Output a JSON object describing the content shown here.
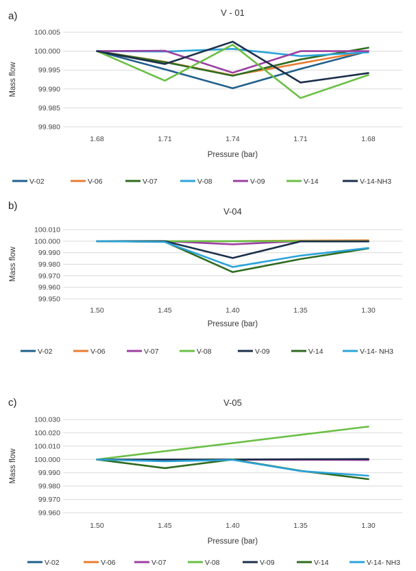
{
  "chart_data": [
    {
      "panel": "a)",
      "type": "line",
      "title": "V - 01",
      "xlabel": "Pressure (bar)",
      "ylabel": "Mass flow",
      "categories": [
        "1.68",
        "1.71",
        "1.74",
        "1.71",
        "1.68"
      ],
      "ylim": [
        99.98,
        100.005
      ],
      "yticks": [
        99.98,
        99.985,
        99.99,
        99.995,
        100.0,
        100.005
      ],
      "ytick_decimals": 3,
      "grid": true,
      "legend_position": "bottom",
      "series": [
        {
          "name": "V-02",
          "color": "#1f5f8b",
          "values": [
            100.0,
            99.9952,
            99.9902,
            99.9953,
            100.0
          ]
        },
        {
          "name": "V-06",
          "color": "#e87d32",
          "values": [
            100.0,
            99.9972,
            99.9936,
            99.9968,
            100.0
          ]
        },
        {
          "name": "V-07",
          "color": "#2e6b1f",
          "values": [
            100.0,
            99.9971,
            99.9935,
            99.9978,
            100.0009
          ]
        },
        {
          "name": "V-08",
          "color": "#2ba3d9",
          "values": [
            100.0,
            99.9999,
            100.0006,
            99.9987,
            99.9997
          ]
        },
        {
          "name": "V-09",
          "color": "#9c3fa1",
          "values": [
            100.0,
            100.0001,
            99.9943,
            100.0,
            100.0
          ]
        },
        {
          "name": "V-14",
          "color": "#6bbf45",
          "values": [
            100.0,
            99.9922,
            100.0017,
            99.9876,
            99.9937
          ]
        },
        {
          "name": "V-14-NH3",
          "color": "#1b2f4a",
          "values": [
            100.0,
            99.9966,
            100.0025,
            99.9917,
            99.9942
          ]
        }
      ]
    },
    {
      "panel": "b)",
      "type": "line",
      "title": "V-04",
      "xlabel": "Pressure (bar)",
      "ylabel": "Mass flow",
      "categories": [
        "1.50",
        "1.45",
        "1.40",
        "1.35",
        "1.30"
      ],
      "ylim": [
        99.95,
        100.01
      ],
      "yticks": [
        99.95,
        99.96,
        99.97,
        99.98,
        99.99,
        100.0,
        100.01
      ],
      "ytick_decimals": 3,
      "grid": true,
      "legend_position": "bottom",
      "series": [
        {
          "name": "V-02",
          "color": "#1f5f8b",
          "values": [
            100.0,
            100.0,
            100.0,
            100.0,
            100.0002
          ]
        },
        {
          "name": "V-06",
          "color": "#e87d32",
          "values": [
            100.0,
            100.0,
            100.0,
            100.0005,
            100.0008
          ]
        },
        {
          "name": "V-07",
          "color": "#9c3fa1",
          "values": [
            100.0,
            100.0,
            99.9973,
            100.0,
            100.0
          ]
        },
        {
          "name": "V-08",
          "color": "#6bbf45",
          "values": [
            100.0,
            100.0,
            100.0,
            100.0,
            100.0
          ]
        },
        {
          "name": "V-09",
          "color": "#1b2f4a",
          "values": [
            100.0,
            100.0,
            99.9854,
            99.9998,
            99.9998
          ]
        },
        {
          "name": "V-14",
          "color": "#2e6b1f",
          "values": [
            100.0,
            99.9995,
            99.9732,
            99.9845,
            99.9937
          ]
        },
        {
          "name": "V-14- NH3",
          "color": "#2ba3d9",
          "values": [
            100.0,
            99.9993,
            99.9776,
            99.9875,
            99.9941
          ]
        }
      ]
    },
    {
      "panel": "c)",
      "type": "line",
      "title": "V-05",
      "xlabel": "Pressure (bar)",
      "ylabel": "Mass flow",
      "categories": [
        "1.50",
        "1.45",
        "1.40",
        "1.35",
        "1.30"
      ],
      "ylim": [
        99.96,
        100.03
      ],
      "yticks": [
        99.96,
        99.97,
        99.98,
        99.99,
        100.0,
        100.01,
        100.02,
        100.03
      ],
      "ytick_decimals": 3,
      "grid": true,
      "legend_position": "bottom",
      "series": [
        {
          "name": "V-02",
          "color": "#1f5f8b",
          "values": [
            100.0,
            100.0,
            100.0,
            100.0,
            100.0
          ]
        },
        {
          "name": "V-06",
          "color": "#e87d32",
          "values": [
            100.0,
            99.9998,
            100.0,
            100.0,
            99.9999
          ]
        },
        {
          "name": "V-07",
          "color": "#9c3fa1",
          "values": [
            100.0,
            99.9993,
            99.9998,
            99.9998,
            99.9996
          ]
        },
        {
          "name": "V-08",
          "color": "#6bbf45",
          "values": [
            100.0,
            100.0062,
            100.0123,
            100.0185,
            100.0247
          ]
        },
        {
          "name": "V-09",
          "color": "#1b2f4a",
          "values": [
            100.0,
            99.9999,
            100.0,
            100.0002,
            100.0003
          ]
        },
        {
          "name": "V-14",
          "color": "#2e6b1f",
          "values": [
            100.0,
            99.9935,
            100.0,
            99.9915,
            99.9852
          ]
        },
        {
          "name": "V-14- NH3",
          "color": "#2ba3d9",
          "values": [
            100.0,
            99.9986,
            99.9997,
            99.9913,
            99.9878
          ]
        }
      ]
    }
  ]
}
